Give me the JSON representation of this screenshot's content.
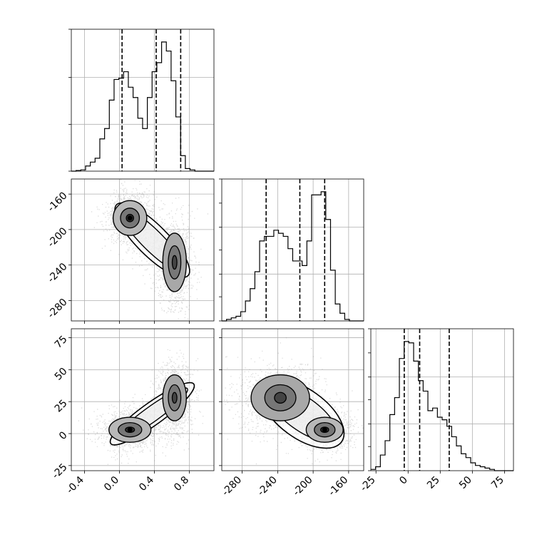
{
  "chart_data": [
    {
      "type": "histogram",
      "variable_index": 0,
      "x_range": [
        -0.55,
        1.08
      ],
      "bin_edges_start": -0.55,
      "bin_width": 0.0543,
      "heights": [
        0,
        0.005,
        0.01,
        0.04,
        0.07,
        0.1,
        0.25,
        0.33,
        0.55,
        0.71,
        0.72,
        0.77,
        0.65,
        0.57,
        0.41,
        0.33,
        0.57,
        0.77,
        0.84,
        1.0,
        0.93,
        0.7,
        0.42,
        0.12,
        0.02,
        0.01,
        0,
        0,
        0,
        0
      ],
      "quantiles": [
        0.03,
        0.42,
        0.7
      ],
      "xticks": [
        "-0.4",
        "0.0",
        "0.4",
        "0.8"
      ],
      "grid": true
    },
    {
      "type": "scatter_density",
      "x_variable": 0,
      "y_variable": 1,
      "x_range": [
        -0.55,
        1.08
      ],
      "y_range": [
        -303,
        -143
      ],
      "modes": [
        {
          "x": 0.12,
          "y": -187,
          "sx": 0.12,
          "sy": 14
        },
        {
          "x": 0.63,
          "y": -237,
          "sx": 0.09,
          "sy": 22
        }
      ],
      "yticks": [
        "-160",
        "-200",
        "-240",
        "-280"
      ]
    },
    {
      "type": "histogram",
      "variable_index": 1,
      "x_range": [
        -303,
        -143
      ],
      "bin_edges_start": -303,
      "bin_width": 5.33,
      "heights": [
        0,
        0.01,
        0.02,
        0.03,
        0.06,
        0.13,
        0.21,
        0.32,
        0.52,
        0.55,
        0.55,
        0.59,
        0.57,
        0.55,
        0.47,
        0.39,
        0.39,
        0.36,
        0.52,
        0.82,
        0.82,
        0.84,
        0.66,
        0.33,
        0.11,
        0.05,
        0.01,
        0,
        0,
        0
      ],
      "quantiles": [
        -253,
        -215,
        -187
      ],
      "grid": true
    },
    {
      "type": "scatter_density",
      "x_variable": 0,
      "y_variable": 2,
      "x_range": [
        -0.55,
        1.08
      ],
      "y_range": [
        -29,
        82
      ],
      "modes": [
        {
          "x": 0.12,
          "y": 3,
          "sx": 0.15,
          "sy": 7
        },
        {
          "x": 0.63,
          "y": 28,
          "sx": 0.09,
          "sy": 12
        }
      ],
      "xticks": [
        "-0.4",
        "0.0",
        "0.4",
        "0.8"
      ],
      "yticks": [
        "75",
        "50",
        "25",
        "0",
        "-25"
      ]
    },
    {
      "type": "scatter_density",
      "x_variable": 1,
      "y_variable": 2,
      "x_range": [
        -303,
        -143
      ],
      "y_range": [
        -29,
        82
      ],
      "modes": [
        {
          "x": -187,
          "y": 3,
          "sx": 13,
          "sy": 7
        },
        {
          "x": -237,
          "y": 28,
          "sx": 22,
          "sy": 12
        }
      ],
      "xticks": [
        "-280",
        "-240",
        "-200",
        "-160"
      ]
    },
    {
      "type": "histogram",
      "variable_index": 2,
      "x_range": [
        -29,
        82
      ],
      "bin_edges_start": -29,
      "bin_width": 3.7,
      "heights": [
        0.01,
        0.03,
        0.12,
        0.23,
        0.43,
        0.56,
        0.86,
        0.99,
        0.98,
        0.84,
        0.69,
        0.61,
        0.46,
        0.48,
        0.41,
        0.39,
        0.34,
        0.26,
        0.19,
        0.13,
        0.1,
        0.06,
        0.04,
        0.03,
        0.02,
        0.01,
        0,
        0,
        0,
        0
      ],
      "quantiles": [
        -3,
        9,
        32
      ],
      "xticks": [
        "-25",
        "0",
        "25",
        "50",
        "75"
      ],
      "grid": true
    }
  ]
}
